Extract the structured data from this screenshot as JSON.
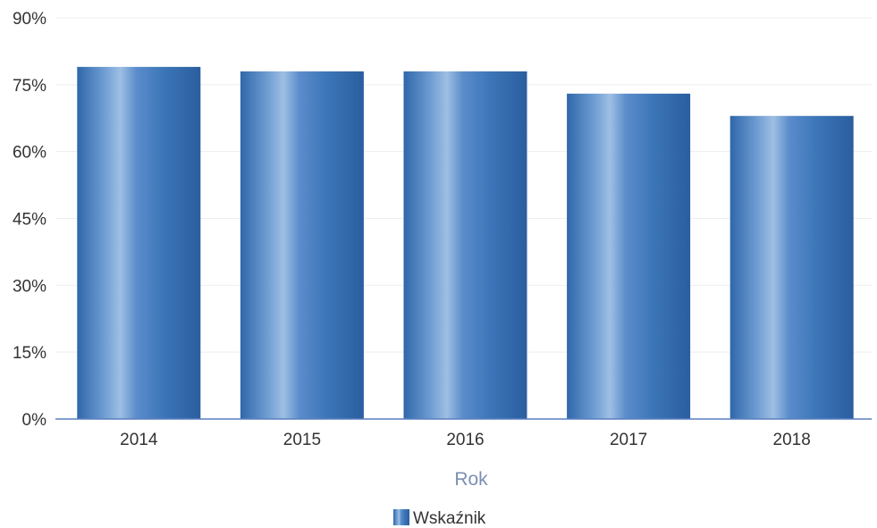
{
  "chart_data": {
    "type": "bar",
    "categories": [
      "2014",
      "2015",
      "2016",
      "2017",
      "2018"
    ],
    "series": [
      {
        "name": "Wskaźnik",
        "values": [
          79,
          78,
          78,
          73,
          68
        ]
      }
    ],
    "xlabel": "Rok",
    "ylabel": "",
    "ylim": [
      0,
      90
    ],
    "yticks": [
      0,
      15,
      30,
      45,
      60,
      75,
      90
    ],
    "ytick_labels": [
      "0%",
      "15%",
      "30%",
      "45%",
      "60%",
      "75%",
      "90%"
    ],
    "grid": true,
    "legend_position": "bottom"
  },
  "colors": {
    "bar": "#3f79b8",
    "bar_light": "#8fb3dc",
    "bar_dark": "#2b5f9e",
    "axis_title": "#7b8fb2",
    "grid": "#eeeeee",
    "axis_line": "#5a7fc0"
  }
}
